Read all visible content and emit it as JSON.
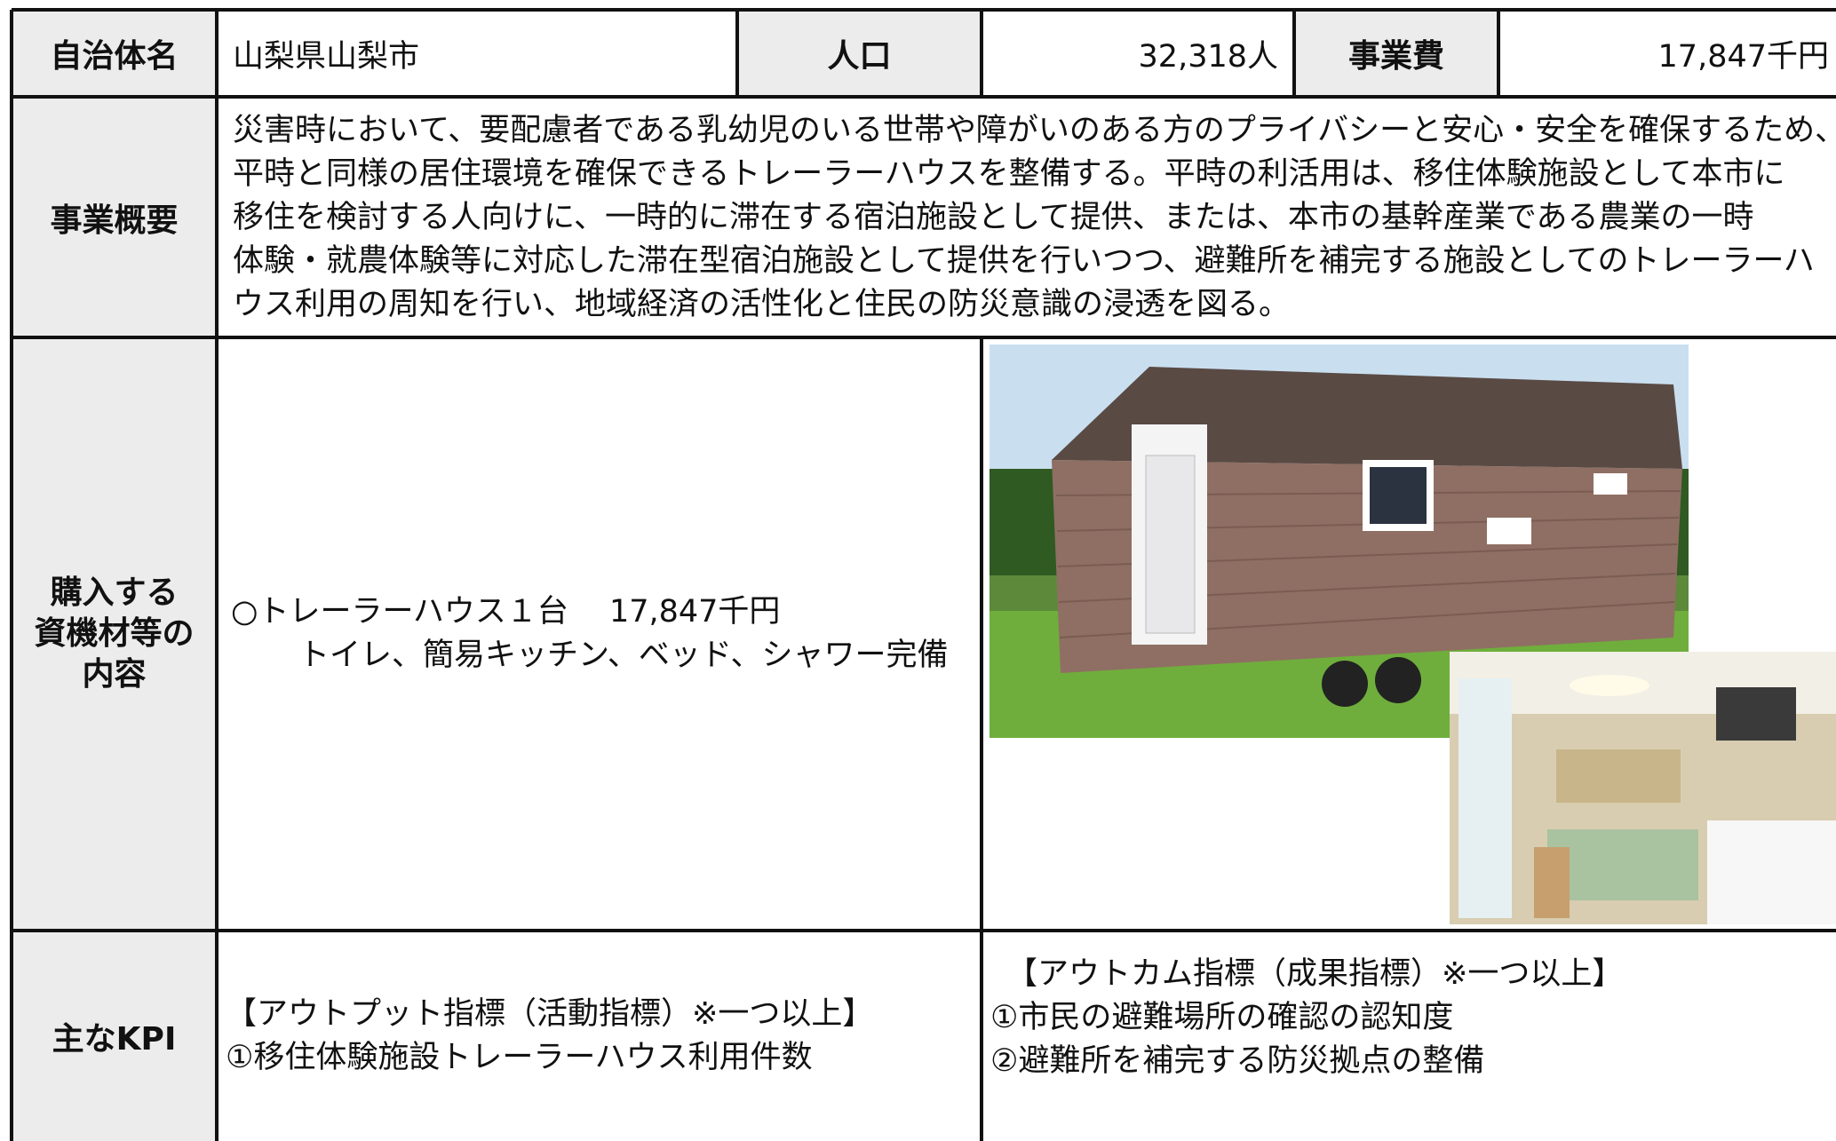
{
  "table": {
    "header": {
      "municipality_label": "自治体名",
      "municipality": "山梨県山梨市",
      "population_label": "人口",
      "population": "32,318人",
      "cost_label": "事業費",
      "cost": "17,847千円"
    },
    "summary": {
      "label": "事業概要",
      "lines": [
        "災害時において、要配慮者である乳幼児のいる世帯や障がいのある方のプライバシーと安心・安全を確保するため、",
        "平時と同様の居住環境を確保できるトレーラーハウスを整備する。平時の利活用は、移住体験施設として本市に",
        "移住を検討する人向けに、一時的に滞在する宿泊施設として提供、または、本市の基幹産業である農業の一時",
        "体験・就農体験等に対応した滞在型宿泊施設として提供を行いつつ、避難所を補完する施設としてのトレーラーハ",
        "ウス利用の周知を行い、地域経済の活性化と住民の防災意識の浸透を図る。"
      ]
    },
    "materials": {
      "label_lines": [
        "購入する",
        "資機材等の",
        "内容"
      ],
      "lines": [
        "○トレーラーハウス１台　 17,847千円",
        "トイレ、簡易キッチン、ベッド、シャワー完備"
      ]
    },
    "kpi": {
      "label": "主なKPI",
      "output": [
        "【アウトプット指標（活動指標）※一つ以上】",
        "①移住体験施設トレーラーハウス利用件数"
      ],
      "outcome": [
        "【アウトカム指標（成果指標）※一つ以上】",
        "①市民の避難場所の確認の認知度",
        "②避難所を補完する防災拠点の整備"
      ]
    }
  }
}
